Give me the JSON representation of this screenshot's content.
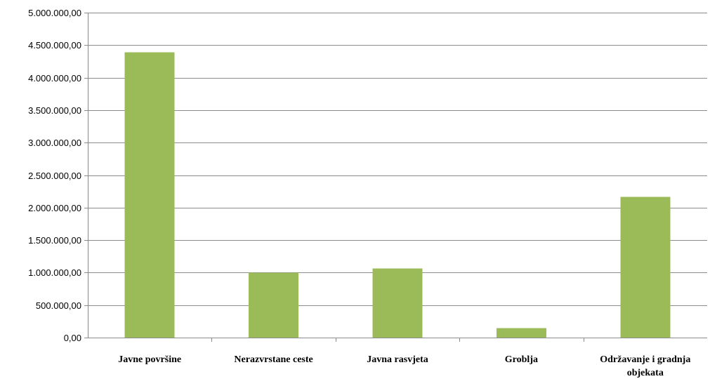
{
  "chart_data": {
    "type": "bar",
    "title": "",
    "xlabel": "",
    "ylabel": "",
    "categories": [
      "Javne površine",
      "Nerazvrstane ceste",
      "Javna rasvjeta",
      "Groblja",
      "Održavanje i gradnja objekata"
    ],
    "values": [
      4390000,
      1000000,
      1065000,
      145000,
      2165000
    ],
    "ylim": [
      0,
      5000000
    ],
    "yticks": [
      0,
      500000,
      1000000,
      1500000,
      2000000,
      2500000,
      3000000,
      3500000,
      4000000,
      4500000,
      5000000
    ],
    "ytick_labels": [
      "0,00",
      "500.000,00",
      "1.000.000,00",
      "1.500.000,00",
      "2.000.000,00",
      "2.500.000,00",
      "3.000.000,00",
      "3.500.000,00",
      "4.000.000,00",
      "4.500.000,00",
      "5.000.000,00"
    ],
    "grid": true,
    "legend": "none",
    "bar_color": "#9bbb59"
  }
}
